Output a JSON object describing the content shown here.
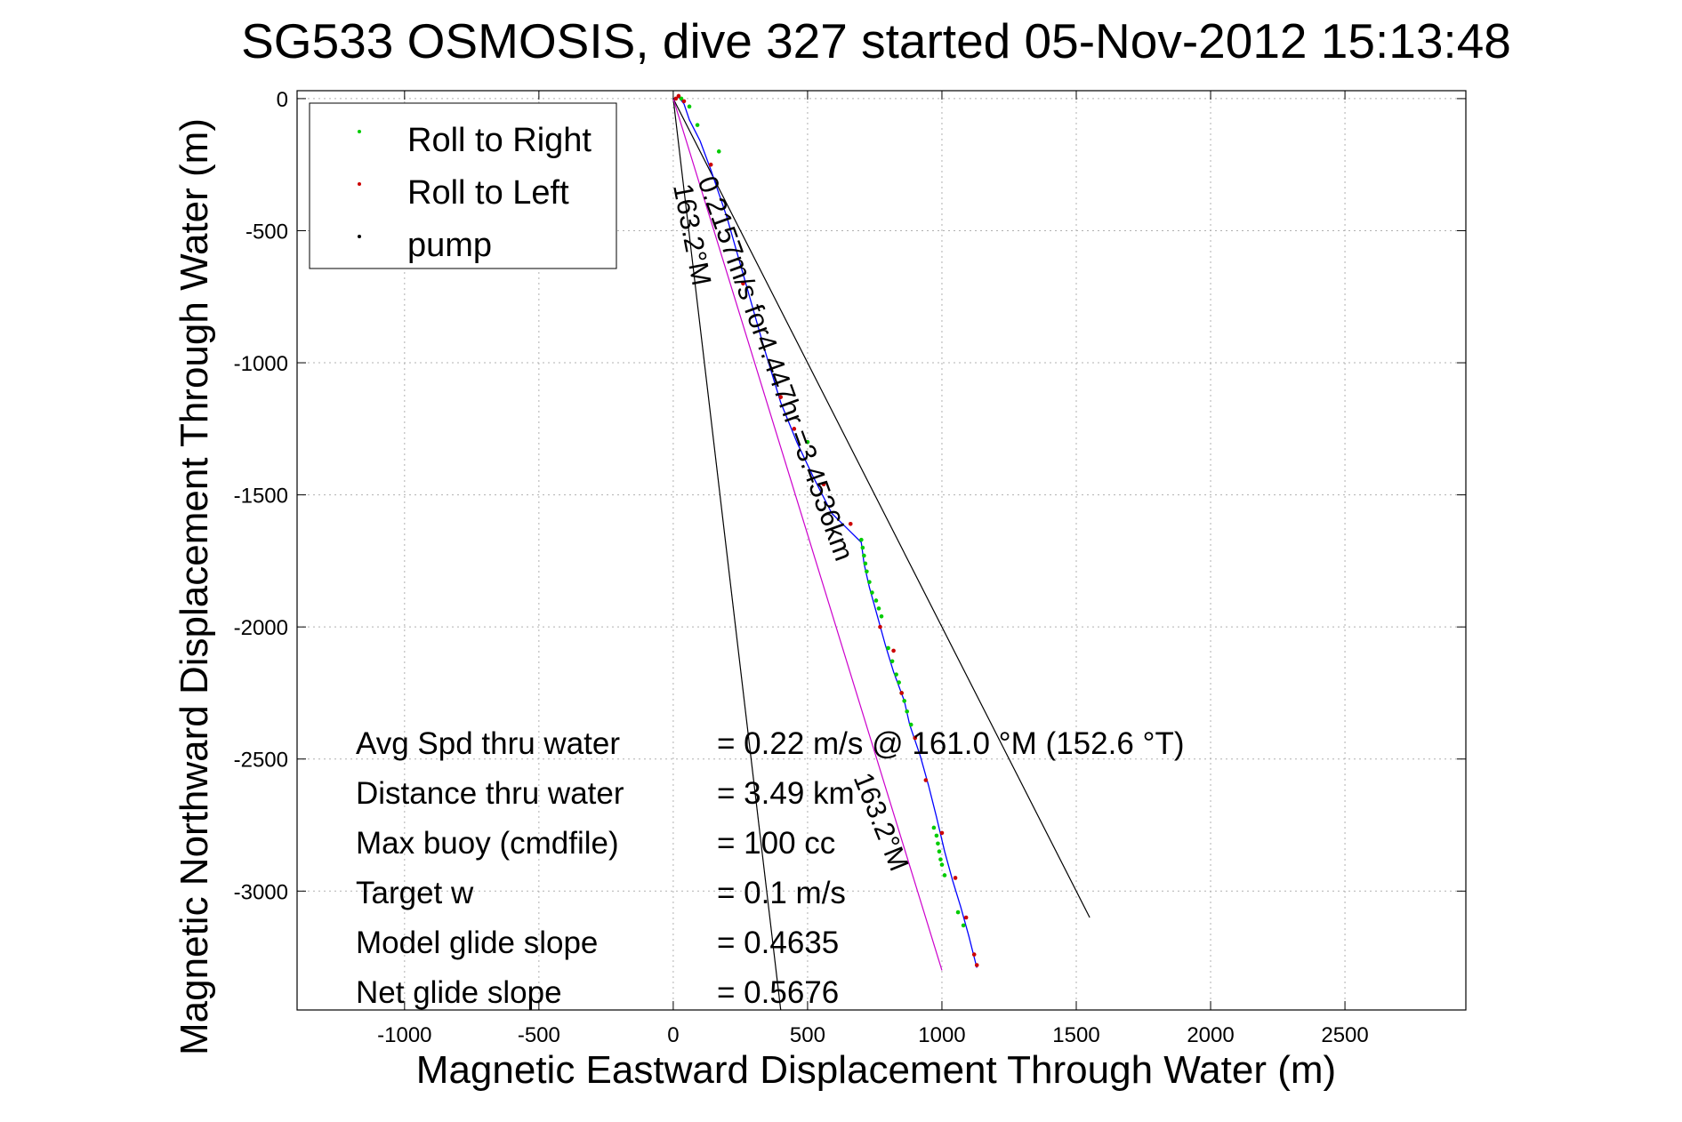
{
  "chart_data": {
    "type": "scatter",
    "title": "SG533 OSMOSIS, dive 327 started 05-Nov-2012 15:13:48",
    "xlabel": "Magnetic Eastward Displacement Through Water (m)",
    "ylabel": "Magnetic Northward Displacement Through Water (m)",
    "xlim": [
      -1400,
      2950
    ],
    "ylim": [
      -3450,
      30
    ],
    "x_ticks": [
      -1000,
      -500,
      0,
      500,
      1000,
      1500,
      2000,
      2500
    ],
    "x_tick_labels": [
      "-1000",
      "-500",
      "0",
      "500",
      "1000",
      "1500",
      "2000",
      "2500"
    ],
    "y_ticks": [
      0,
      -500,
      -1000,
      -1500,
      -2000,
      -2500,
      -3000
    ],
    "y_tick_labels": [
      "0",
      "-500",
      "-1000",
      "-1500",
      "-2000",
      "-2500",
      "-3000"
    ],
    "grid": true,
    "legend_position": "top-left",
    "legend": [
      {
        "label": "Roll to Right",
        "color": "#00cc00"
      },
      {
        "label": "Roll to Left",
        "color": "#cc0000"
      },
      {
        "label": "pump",
        "color": "#000000"
      }
    ],
    "track": {
      "color": "#0000ff",
      "x": [
        0,
        20,
        40,
        60,
        100,
        140,
        200,
        270,
        340,
        400,
        460,
        520,
        590,
        650,
        700,
        710,
        730,
        760,
        790,
        820,
        860,
        880,
        920,
        950,
        980,
        1010,
        1040,
        1070,
        1100,
        1120,
        1130
      ],
      "y": [
        0,
        5,
        -20,
        -80,
        -160,
        -270,
        -450,
        -700,
        -950,
        -1150,
        -1300,
        -1430,
        -1570,
        -1630,
        -1680,
        -1760,
        -1850,
        -1960,
        -2070,
        -2170,
        -2280,
        -2370,
        -2490,
        -2600,
        -2720,
        -2850,
        -2960,
        -3060,
        -3170,
        -3250,
        -3290
      ]
    },
    "roll_right_points": {
      "x": [
        30,
        60,
        90,
        170,
        500,
        700,
        705,
        710,
        715,
        720,
        730,
        740,
        755,
        765,
        775,
        800,
        815,
        830,
        840,
        850,
        860,
        870,
        885,
        900,
        970,
        980,
        985,
        990,
        995,
        1000,
        1010,
        1060,
        1080
      ],
      "y": [
        0,
        -30,
        -100,
        -200,
        -1300,
        -1670,
        -1700,
        -1730,
        -1760,
        -1790,
        -1830,
        -1870,
        -1900,
        -1930,
        -1960,
        -2080,
        -2130,
        -2180,
        -2210,
        -2250,
        -2280,
        -2320,
        -2370,
        -2420,
        -2760,
        -2790,
        -2820,
        -2850,
        -2880,
        -2900,
        -2940,
        -3080,
        -3130
      ]
    },
    "roll_left_points": {
      "x": [
        10,
        20,
        40,
        140,
        260,
        400,
        450,
        560,
        660,
        770,
        820,
        850,
        900,
        940,
        1000,
        1050,
        1090,
        1120,
        1130
      ],
      "y": [
        0,
        10,
        -10,
        -250,
        -700,
        -1130,
        -1250,
        -1460,
        -1610,
        -2000,
        -2090,
        -2250,
        -2420,
        -2580,
        -2780,
        -2950,
        -3100,
        -3240,
        -3280
      ]
    },
    "heading_lines": [
      {
        "x": [
          0,
          1550
        ],
        "y": [
          0,
          -3100
        ],
        "color": "#000000"
      },
      {
        "x": [
          0,
          400
        ],
        "y": [
          0,
          -3450
        ],
        "color": "#000000"
      },
      {
        "x": [
          0,
          1000
        ],
        "y": [
          0,
          -3300
        ],
        "color": "#cc00cc"
      }
    ],
    "line_annotations": [
      {
        "text": "0.2157m/s for4.447hr =3.4536km",
        "x": 90,
        "y": -310,
        "rotation": 70
      },
      {
        "text": "163.2°M",
        "x": 0,
        "y": -330,
        "rotation": 79
      },
      {
        "text": "163.2°M",
        "x": 670,
        "y": -2570,
        "rotation": 68
      }
    ],
    "stats": [
      {
        "label": "Avg Spd thru water",
        "value": "=  0.22 m/s @ 161.0 °M (152.6 °T)"
      },
      {
        "label": "Distance thru water",
        "value": "=  3.49 km"
      },
      {
        "label": "Max buoy (cmdfile)",
        "value": "= 100 cc"
      },
      {
        "label": "Target w",
        "value": "= 0.1 m/s"
      },
      {
        "label": "Model glide slope",
        "value": "= 0.4635"
      },
      {
        "label": "Net glide slope",
        "value": "= 0.5676"
      }
    ]
  }
}
